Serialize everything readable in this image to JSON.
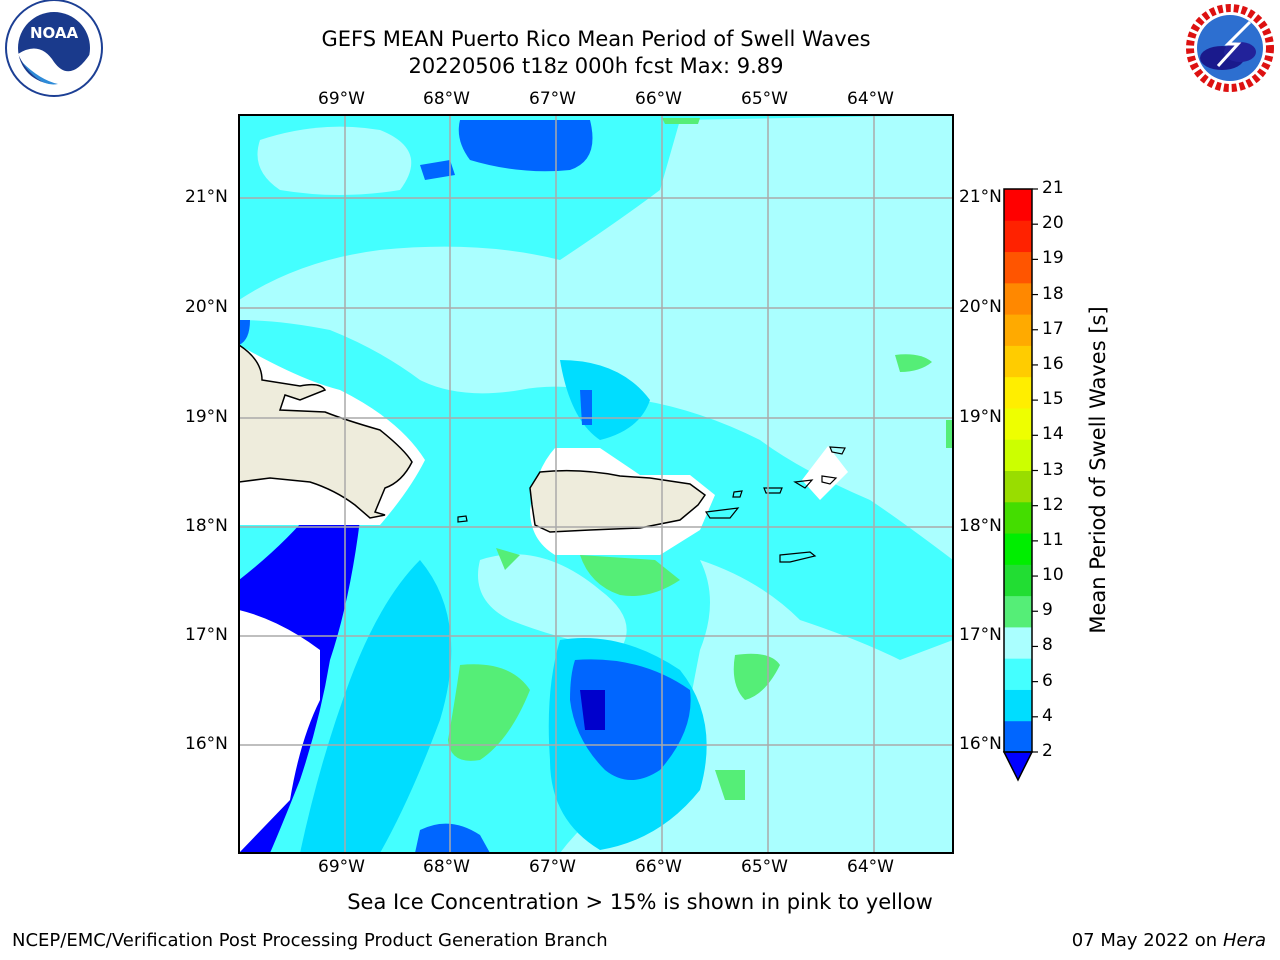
{
  "header": {
    "title_line1": "GEFS MEAN Puerto Rico Mean Period of Swell Waves",
    "title_line2": "20220506 t18z 000h fcst   Max: 9.89"
  },
  "logos": {
    "left": "noaa-logo",
    "right": "nws-logo"
  },
  "map": {
    "lon_labels": [
      "69°W",
      "68°W",
      "67°W",
      "66°W",
      "65°W",
      "64°W"
    ],
    "lat_labels": [
      "21°N",
      "20°N",
      "19°N",
      "18°N",
      "17°N",
      "16°N"
    ]
  },
  "colorbar": {
    "label": "Mean Period of Swell Waves [s]",
    "ticks": [
      "2",
      "4",
      "6",
      "8",
      "9",
      "10",
      "11",
      "12",
      "13",
      "14",
      "15",
      "16",
      "17",
      "18",
      "19",
      "20",
      "21"
    ],
    "colors": [
      "#0000ff",
      "#0066ff",
      "#00ddff",
      "#44ffff",
      "#aaffff",
      "#55ee77",
      "#22dd33",
      "#00ee00",
      "#44dd00",
      "#99dd00",
      "#ccff00",
      "#eeff00",
      "#ffee00",
      "#ffcc00",
      "#ffaa00",
      "#ff8800",
      "#ff5500",
      "#ff2200",
      "#ff0000"
    ]
  },
  "notes": {
    "sea_ice": "Sea Ice Concentration > 15% is shown in pink to yellow",
    "producer": "NCEP/EMC/Verification Post Processing Product Generation Branch",
    "date": "07 May 2022 on",
    "host": "Hera"
  }
}
